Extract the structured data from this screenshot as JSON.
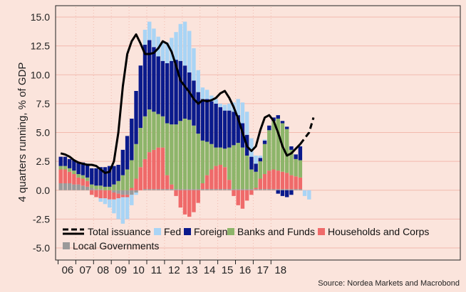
{
  "chart_data": {
    "type": "bar",
    "subtype": "stacked bar with line overlay",
    "ylabel": "4 quarters running, % of GDP",
    "ylim": [
      -5.0,
      15.0
    ],
    "yticks": [
      "15.0",
      "12.5",
      "10.0",
      "7.5",
      "5.0",
      "2.5",
      "0.0",
      "-2.5",
      "-5.0"
    ],
    "year_labels": [
      "06",
      "07",
      "08",
      "09",
      "10",
      "11",
      "12",
      "13",
      "14",
      "15",
      "16",
      "17",
      "18"
    ],
    "x_first_quarter": "2006Q1",
    "grid": true,
    "legend_position": "bottom-left, inside plot",
    "source": "Source: Nordea Markets and Macrobond",
    "colors": {
      "background": "#fbe4dc",
      "grid": "#f2b9ae",
      "fed": "#a9d4f5",
      "foreign": "#0a1a8c",
      "banks_and_funds": "#8db56a",
      "households_and_corps": "#ef6a6a",
      "local_governments": "#9a9a9a",
      "total_line": "#000000"
    },
    "legend": [
      {
        "key": "total",
        "label": "Total issuance",
        "kind": "line"
      },
      {
        "key": "fed",
        "label": "Fed",
        "kind": "box"
      },
      {
        "key": "foreign",
        "label": "Foreign",
        "kind": "box"
      },
      {
        "key": "banks",
        "label": "Banks and Funds",
        "kind": "box"
      },
      {
        "key": "households",
        "label": "Households and Corps",
        "kind": "box"
      },
      {
        "key": "local",
        "label": "Local Governments",
        "kind": "box"
      }
    ],
    "series": [
      {
        "key": "local",
        "name": "Local Governments",
        "values": [
          0.6,
          0.6,
          0.6,
          0.5,
          0.5,
          0.4,
          0.3,
          0.2,
          0.1,
          0.1,
          0.0,
          0.0,
          -0.2,
          -0.3,
          -0.4,
          -0.4,
          -0.4,
          -0.2,
          0.0,
          0.1,
          0.1,
          0.1,
          0.1,
          0.1,
          0.1,
          0.1,
          0.1,
          0.1,
          0.1,
          0.1,
          0.1,
          0.1,
          0.1,
          0.1,
          0.1,
          0.1,
          0.1,
          0.1,
          0.1,
          0.1,
          0.1,
          0.1,
          0.1,
          0.1,
          0.1,
          0.1,
          0.1,
          0.1,
          0.1,
          0.1,
          0.1,
          0.1,
          0.1,
          0.1,
          0.1
        ]
      },
      {
        "key": "households",
        "name": "Households and Corps",
        "values": [
          1.2,
          1.2,
          1.0,
          0.9,
          0.6,
          0.6,
          0.5,
          -0.4,
          -0.6,
          -0.7,
          -0.7,
          -0.8,
          -0.6,
          -0.4,
          -0.2,
          -0.2,
          0.2,
          1.0,
          2.0,
          2.6,
          3.2,
          3.4,
          3.6,
          3.6,
          1.2,
          0.4,
          -0.5,
          -1.5,
          -2.1,
          -2.3,
          -1.9,
          -1.1,
          0.5,
          1.2,
          1.7,
          2.0,
          2.1,
          1.9,
          0.8,
          -0.5,
          -1.3,
          -1.6,
          -0.9,
          -0.4,
          0.1,
          0.9,
          1.3,
          1.6,
          1.7,
          1.6,
          1.5,
          1.4,
          1.2,
          1.1,
          1.0
        ]
      },
      {
        "key": "banks",
        "name": "Banks and Funds",
        "values": [
          0.3,
          0.3,
          0.3,
          0.3,
          0.3,
          0.3,
          0.3,
          0.3,
          0.3,
          0.3,
          0.3,
          0.3,
          0.5,
          0.8,
          1.3,
          1.8,
          2.4,
          3.0,
          3.4,
          3.7,
          3.7,
          3.3,
          2.9,
          2.7,
          4.5,
          5.2,
          5.6,
          5.9,
          6.1,
          6.0,
          5.5,
          4.8,
          3.7,
          2.9,
          2.2,
          1.6,
          1.5,
          1.6,
          2.8,
          3.8,
          4.0,
          3.6,
          2.9,
          1.7,
          1.4,
          1.5,
          2.6,
          3.5,
          4.2,
          4.5,
          4.2,
          3.8,
          2.2,
          1.5,
          1.5
        ]
      },
      {
        "key": "foreign",
        "name": "Foreign",
        "values": [
          0.8,
          0.8,
          0.8,
          0.9,
          1.0,
          1.1,
          1.2,
          1.4,
          1.5,
          1.6,
          1.7,
          1.8,
          1.6,
          1.4,
          2.2,
          2.9,
          3.6,
          4.6,
          5.4,
          6.2,
          6.0,
          5.6,
          5.0,
          4.8,
          5.2,
          5.5,
          5.6,
          5.2,
          4.6,
          4.1,
          3.9,
          3.6,
          3.6,
          3.7,
          3.7,
          3.8,
          3.5,
          3.3,
          3.2,
          2.9,
          2.4,
          2.1,
          1.8,
          1.1,
          0.7,
          0.3,
          0.3,
          0.4,
          0.3,
          0.3,
          0.2,
          0.2,
          0.3,
          0.4,
          1.2
        ]
      },
      {
        "key": "fed",
        "name": "Fed",
        "values": [
          0.0,
          0.0,
          0.0,
          0.0,
          0.0,
          0.0,
          0.0,
          0.0,
          0.0,
          0.0,
          0.0,
          0.0,
          0.0,
          0.0,
          0.0,
          0.0,
          0.0,
          0.0,
          0.0,
          1.3,
          1.6,
          1.6,
          1.7,
          1.6,
          1.8,
          2.0,
          2.4,
          3.2,
          3.8,
          3.6,
          2.8,
          1.9,
          1.0,
          0.8,
          0.5,
          0.4,
          0.3,
          0.5,
          0.6,
          0.8,
          1.4,
          1.8,
          2.0,
          1.6,
          0.7,
          0.2,
          0.1,
          0.0,
          0.0,
          0.0,
          0.0,
          0.0,
          0.0,
          0.0,
          0.0
        ]
      },
      {
        "key": "fed_neg",
        "name": "Fed",
        "values": [
          0.0,
          0.0,
          0.0,
          0.0,
          0.0,
          0.0,
          0.0,
          0.0,
          0.0,
          -0.3,
          -0.5,
          -0.7,
          -1.2,
          -1.8,
          -2.3,
          -1.9,
          -0.9,
          -0.2,
          0.0,
          0.0,
          0.0,
          0.0,
          0.0,
          0.0,
          0.0,
          0.0,
          0.0,
          0.0,
          0.0,
          0.0,
          0.0,
          0.0,
          0.0,
          0.0,
          0.0,
          0.0,
          0.0,
          0.0,
          0.0,
          0.0,
          0.0,
          0.0,
          0.0,
          0.0,
          0.0,
          0.0,
          0.0,
          0.0,
          0.0,
          0.0,
          0.0,
          0.0,
          0.0,
          0.0,
          0.0
        ]
      },
      {
        "key": "foreign_neg",
        "name": "Foreign",
        "values": [
          0.0,
          0.0,
          0.0,
          0.0,
          0.0,
          0.0,
          0.0,
          0.0,
          0.0,
          0.0,
          0.0,
          0.0,
          0.0,
          0.0,
          0.0,
          0.0,
          0.0,
          0.0,
          0.0,
          0.0,
          0.0,
          0.0,
          0.0,
          0.0,
          0.0,
          0.0,
          0.0,
          0.0,
          0.0,
          0.0,
          0.0,
          0.0,
          0.0,
          0.0,
          0.0,
          0.0,
          0.0,
          0.0,
          0.0,
          0.0,
          0.0,
          0.0,
          0.0,
          0.0,
          0.0,
          0.0,
          0.0,
          0.0,
          0.0,
          -0.3,
          -0.5,
          -0.6,
          -0.4,
          0.0,
          0.0
        ]
      }
    ],
    "extra_bars": [
      {
        "key": "fed",
        "name": "Fed",
        "quarter_index": 55,
        "value": -0.5
      },
      {
        "key": "fed",
        "name": "Fed",
        "quarter_index": 56,
        "value": -0.8
      }
    ],
    "total_issuance": {
      "name": "Total issuance",
      "values": [
        3.2,
        3.1,
        2.9,
        2.6,
        2.4,
        2.3,
        2.2,
        2.2,
        2.1,
        1.8,
        1.5,
        1.6,
        2.5,
        5.0,
        9.0,
        11.8,
        12.9,
        13.5,
        12.7,
        11.8,
        11.8,
        11.9,
        12.3,
        12.9,
        12.7,
        12.0,
        10.8,
        9.5,
        9.0,
        8.5,
        7.9,
        7.5,
        7.8,
        7.7,
        7.8,
        8.0,
        8.4,
        8.6,
        8.0,
        7.2,
        6.2,
        5.0,
        3.8,
        3.4,
        3.8,
        5.2,
        6.3,
        6.5,
        6.0,
        5.0,
        3.8,
        3.0,
        3.2,
        3.6,
        4.0
      ],
      "forecast": [
        4.0,
        4.5,
        5.0,
        6.3
      ],
      "forecast_start_index": 54
    }
  }
}
